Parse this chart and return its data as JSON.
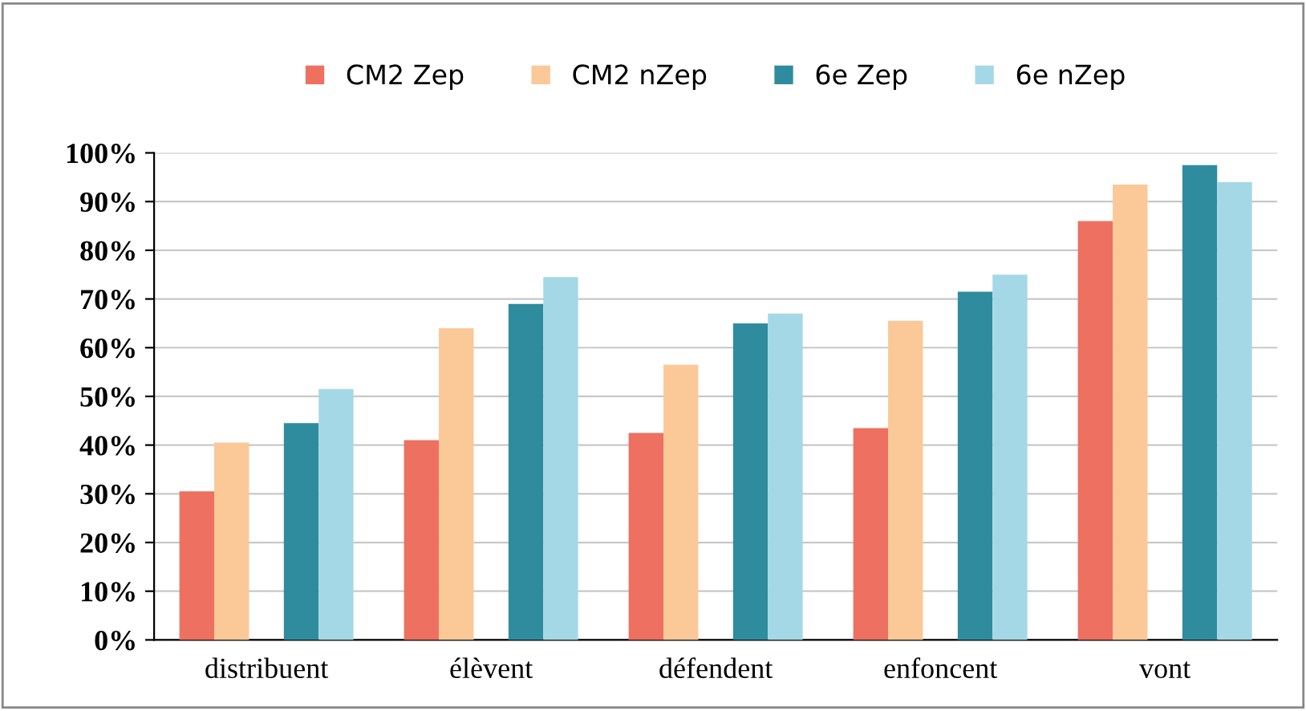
{
  "chart_data": {
    "type": "bar",
    "categories": [
      "distribuent",
      "élèvent",
      "défendent",
      "enfoncent",
      "vont"
    ],
    "series": [
      {
        "name": "CM2 Zep",
        "color": "#ee7060",
        "values": [
          30.5,
          41,
          42.5,
          43.5,
          86
        ]
      },
      {
        "name": "CM2 nZep",
        "color": "#fbc898",
        "values": [
          40.5,
          64,
          56.5,
          65.5,
          93.5
        ]
      },
      {
        "name": "6e Zep",
        "color": "#2f8c9e",
        "values": [
          44.5,
          69,
          65,
          71.5,
          97.5
        ]
      },
      {
        "name": "6e nZep",
        "color": "#a5d8e6",
        "values": [
          51.5,
          74.5,
          67,
          75,
          94
        ]
      }
    ],
    "ylim": [
      0,
      100
    ],
    "yticks": [
      {
        "value": 0,
        "label": "0%"
      },
      {
        "value": 10,
        "label": "10%"
      },
      {
        "value": 20,
        "label": "20%"
      },
      {
        "value": 30,
        "label": "30%"
      },
      {
        "value": 40,
        "label": "40%"
      },
      {
        "value": 50,
        "label": "50%"
      },
      {
        "value": 60,
        "label": "60%"
      },
      {
        "value": 70,
        "label": "70%"
      },
      {
        "value": 80,
        "label": "80%"
      },
      {
        "value": 90,
        "label": "90%"
      },
      {
        "value": 100,
        "label": "100%"
      }
    ],
    "grid": "y",
    "legend": "top"
  }
}
